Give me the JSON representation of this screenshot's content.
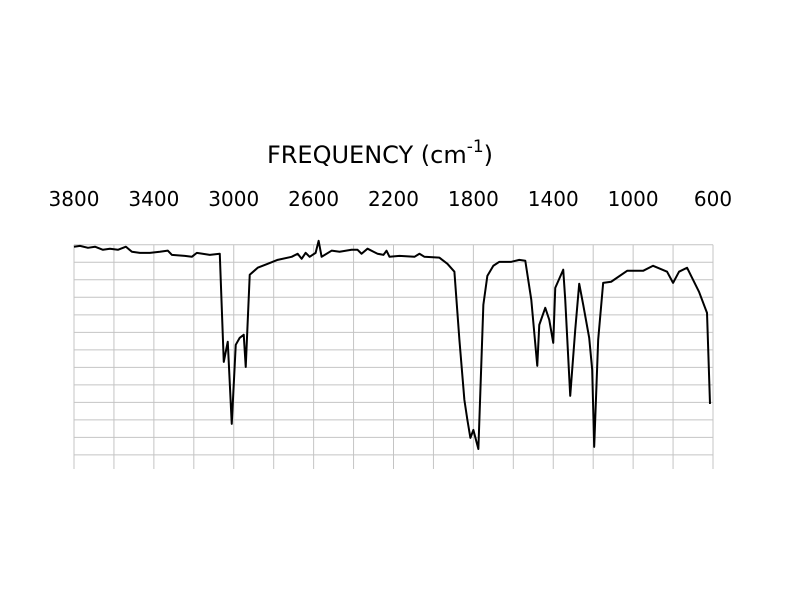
{
  "chart_data": {
    "type": "line",
    "x_label": {
      "text": "FREQUENCY (cm",
      "superscript": "-1",
      "suffix": ")"
    },
    "xlim": [
      3800,
      600
    ],
    "xticks": [
      3800,
      3400,
      3000,
      2600,
      2200,
      1800,
      1400,
      1000,
      600
    ],
    "x_minor_grid": [
      3600,
      3200,
      2800,
      2400,
      2000,
      1600,
      1200,
      800
    ],
    "ylim": [
      -4.6,
      100
    ],
    "y_grid": [
      0,
      8,
      16,
      24,
      32,
      40,
      48,
      56,
      64,
      72,
      80,
      88,
      96
    ],
    "grid": true,
    "series": [
      {
        "color": "#000000",
        "x": [
          3800,
          3770,
          3730,
          3695,
          3655,
          3620,
          3580,
          3540,
          3510,
          3470,
          3420,
          3370,
          3330,
          3310,
          3245,
          3210,
          3185,
          3120,
          3070,
          3050,
          3030,
          3010,
          2990,
          2970,
          2950,
          2940,
          2920,
          2880,
          2830,
          2780,
          2710,
          2680,
          2660,
          2640,
          2620,
          2590,
          2575,
          2560,
          2510,
          2470,
          2410,
          2380,
          2360,
          2330,
          2300,
          2280,
          2250,
          2235,
          2220,
          2170,
          2095,
          2070,
          2045,
          1970,
          1930,
          1895,
          1870,
          1845,
          1830,
          1815,
          1800,
          1775,
          1750,
          1730,
          1700,
          1670,
          1610,
          1570,
          1540,
          1510,
          1480,
          1470,
          1440,
          1420,
          1400,
          1390,
          1350,
          1340,
          1315,
          1290,
          1270,
          1250,
          1220,
          1205,
          1195,
          1175,
          1150,
          1110,
          1030,
          950,
          900,
          830,
          800,
          770,
          730,
          670,
          630,
          615
        ],
        "values": [
          95.1,
          95.5,
          94.6,
          95.1,
          93.7,
          94.2,
          93.7,
          95.1,
          92.8,
          92.3,
          92.3,
          92.8,
          93.3,
          91.4,
          90.9,
          90.5,
          92.3,
          91.4,
          91.9,
          42.5,
          51.7,
          14.2,
          50.3,
          53.5,
          54.9,
          40.2,
          82.3,
          85.5,
          87.3,
          89.1,
          90.5,
          91.9,
          89.6,
          92.3,
          90.5,
          92.3,
          97.8,
          90.5,
          93.3,
          92.8,
          93.7,
          93.7,
          91.9,
          94.2,
          92.8,
          91.9,
          91.4,
          93.3,
          90.5,
          90.9,
          90.5,
          91.9,
          90.5,
          90.1,
          87.3,
          83.7,
          52.6,
          25.1,
          16.0,
          7.8,
          11.4,
          2.7,
          68.6,
          81.8,
          86.4,
          88.2,
          88.2,
          89.1,
          88.7,
          70.9,
          40.7,
          59.4,
          67.2,
          61.7,
          51.2,
          76.3,
          84.6,
          70.9,
          27.0,
          57.1,
          78.2,
          68.6,
          53.5,
          38.9,
          3.7,
          52.6,
          78.6,
          79.1,
          84.1,
          84.1,
          86.4,
          83.7,
          78.6,
          83.7,
          85.5,
          74.5,
          64.9,
          23.3
        ]
      }
    ]
  }
}
